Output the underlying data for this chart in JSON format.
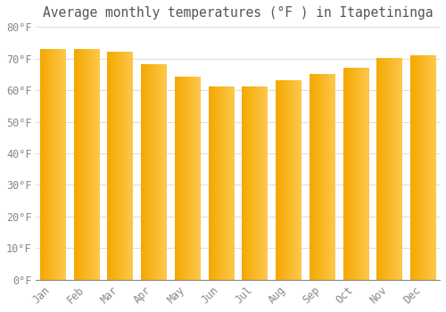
{
  "title": "Average monthly temperatures (°F ) in Itapetininga",
  "months": [
    "Jan",
    "Feb",
    "Mar",
    "Apr",
    "May",
    "Jun",
    "Jul",
    "Aug",
    "Sep",
    "Oct",
    "Nov",
    "Dec"
  ],
  "values": [
    73,
    73,
    72,
    68,
    64,
    61,
    61,
    63,
    65,
    67,
    70,
    71
  ],
  "bar_color_left": "#F5A800",
  "bar_color_right": "#FDC84B",
  "background_color": "#FFFFFF",
  "grid_color": "#DDDDDD",
  "ylim": [
    0,
    80
  ],
  "yticks": [
    0,
    10,
    20,
    30,
    40,
    50,
    60,
    70,
    80
  ],
  "title_fontsize": 10.5,
  "tick_fontsize": 8.5,
  "tick_font_color": "#888888",
  "title_color": "#555555"
}
